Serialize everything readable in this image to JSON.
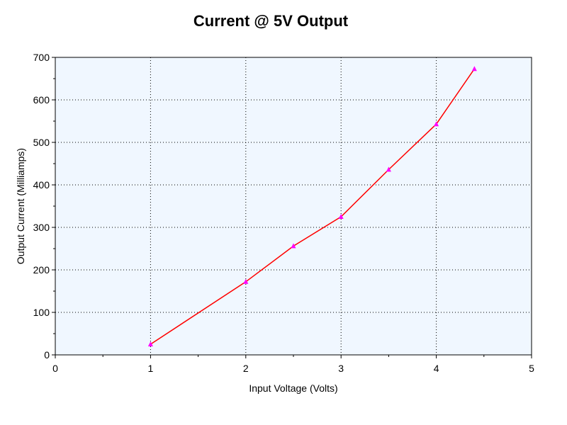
{
  "chart_data": {
    "type": "line",
    "title": "Current @ 5V Output",
    "xlabel": "Input Voltage (Volts)",
    "ylabel": "Output Current (Milliamps)",
    "xlim": [
      0,
      5
    ],
    "ylim": [
      0,
      700
    ],
    "x_ticks": [
      0,
      1,
      2,
      3,
      4,
      5
    ],
    "y_ticks": [
      0,
      100,
      200,
      300,
      400,
      500,
      600,
      700
    ],
    "grid": true,
    "legend": "none",
    "series": [
      {
        "x": [
          1,
          2,
          2.5,
          3,
          3.5,
          4,
          4.4
        ],
        "values": [
          25,
          172,
          256,
          325,
          436,
          543,
          673
        ],
        "line_color": "#ff0000",
        "marker": "triangle",
        "marker_color": "#ff00ff"
      }
    ],
    "plot_background": "#f0f7ff"
  }
}
